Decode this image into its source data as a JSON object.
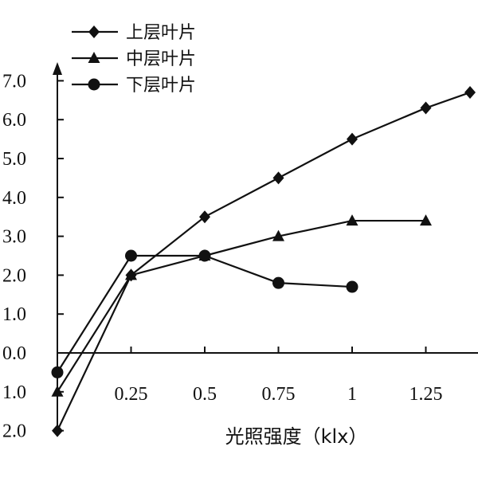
{
  "chart_data": {
    "type": "line",
    "title": "",
    "xlabel": "光照强度（klx）",
    "ylabel": "",
    "x_ticks": [
      0.25,
      0.5,
      0.75,
      1,
      1.25
    ],
    "x_tick_labels": [
      "0.25",
      "0.5",
      "0.75",
      "1",
      "1.25"
    ],
    "y_ticks": [
      -2,
      -1,
      0,
      1,
      2,
      3,
      4,
      5,
      6,
      7
    ],
    "y_tick_labels": [
      "2.0",
      "1.0",
      "0.0",
      "1.0",
      "2.0",
      "3.0",
      "4.0",
      "5.0",
      "6.0",
      "7.0"
    ],
    "xlim": [
      0,
      1.4
    ],
    "ylim": [
      -2,
      7
    ],
    "legend_position": "top-left",
    "colors": {
      "line": "#111111",
      "axis": "#111111",
      "background": "#ffffff"
    },
    "series": [
      {
        "name": "上层叶片",
        "marker": "diamond",
        "x": [
          0,
          0.25,
          0.5,
          0.75,
          1,
          1.25,
          1.4
        ],
        "y": [
          -2.0,
          2.0,
          3.5,
          4.5,
          5.5,
          6.3,
          6.7
        ]
      },
      {
        "name": "中层叶片",
        "marker": "triangle",
        "x": [
          0,
          0.25,
          0.5,
          0.75,
          1,
          1.25
        ],
        "y": [
          -1.0,
          2.0,
          2.5,
          3.0,
          3.4,
          3.4
        ]
      },
      {
        "name": "下层叶片",
        "marker": "circle",
        "x": [
          0,
          0.25,
          0.5,
          0.75,
          1
        ],
        "y": [
          -0.5,
          2.5,
          2.5,
          1.8,
          1.7
        ]
      }
    ]
  }
}
